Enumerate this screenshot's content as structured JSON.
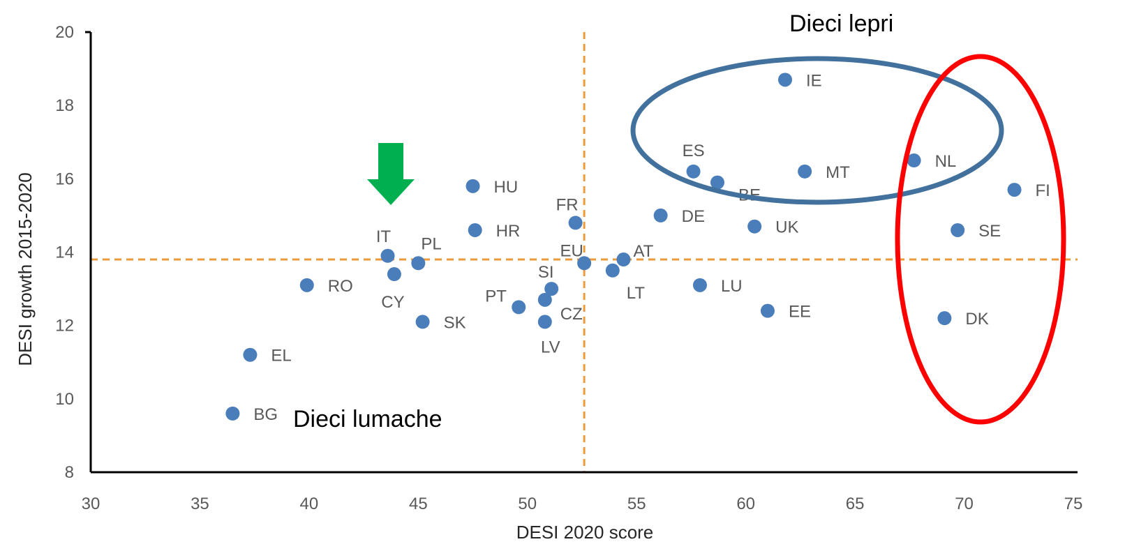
{
  "chart_data": {
    "type": "scatter",
    "xlabel": "DESI 2020 score",
    "ylabel": "DESI growth 2015-2020",
    "xlim": [
      30,
      75
    ],
    "ylim": [
      8,
      20
    ],
    "xticks": [
      30,
      35,
      40,
      45,
      50,
      55,
      60,
      65,
      70,
      75
    ],
    "yticks": [
      8,
      10,
      12,
      14,
      16,
      18,
      20
    ],
    "grid": false,
    "point_color": "#4a7ebb",
    "points": [
      {
        "label": "IE",
        "x": 61.8,
        "y": 18.7
      },
      {
        "label": "ES",
        "x": 57.6,
        "y": 16.2
      },
      {
        "label": "BE",
        "x": 58.7,
        "y": 15.9
      },
      {
        "label": "MT",
        "x": 62.7,
        "y": 16.2
      },
      {
        "label": "NL",
        "x": 67.7,
        "y": 16.5
      },
      {
        "label": "FI",
        "x": 72.3,
        "y": 15.7
      },
      {
        "label": "HU",
        "x": 47.5,
        "y": 15.8
      },
      {
        "label": "FR",
        "x": 52.2,
        "y": 14.8
      },
      {
        "label": "DE",
        "x": 56.1,
        "y": 15.0
      },
      {
        "label": "UK",
        "x": 60.4,
        "y": 14.7
      },
      {
        "label": "SE",
        "x": 69.7,
        "y": 14.6
      },
      {
        "label": "HR",
        "x": 47.6,
        "y": 14.6
      },
      {
        "label": "IT",
        "x": 43.6,
        "y": 13.9
      },
      {
        "label": "PL",
        "x": 45.0,
        "y": 13.7
      },
      {
        "label": "EU",
        "x": 52.6,
        "y": 13.7
      },
      {
        "label": "AT",
        "x": 54.4,
        "y": 13.8
      },
      {
        "label": "LT",
        "x": 53.9,
        "y": 13.5
      },
      {
        "label": "CY",
        "x": 43.9,
        "y": 13.4
      },
      {
        "label": "RO",
        "x": 39.9,
        "y": 13.1
      },
      {
        "label": "SI",
        "x": 51.1,
        "y": 13.0
      },
      {
        "label": "LU",
        "x": 57.9,
        "y": 13.1
      },
      {
        "label": "CZ",
        "x": 50.8,
        "y": 12.7
      },
      {
        "label": "PT",
        "x": 49.6,
        "y": 12.5
      },
      {
        "label": "SK",
        "x": 45.2,
        "y": 12.1
      },
      {
        "label": "LV",
        "x": 50.8,
        "y": 12.1
      },
      {
        "label": "EE",
        "x": 61.0,
        "y": 12.4
      },
      {
        "label": "DK",
        "x": 69.1,
        "y": 12.2
      },
      {
        "label": "EL",
        "x": 37.3,
        "y": 11.2
      },
      {
        "label": "BG",
        "x": 36.5,
        "y": 9.6
      }
    ],
    "reference_lines": {
      "vertical_x": 52.6,
      "horizontal_y": 13.8,
      "color": "#ed9a3b"
    },
    "annotations": [
      {
        "text": "Dieci lepri"
      },
      {
        "text": "Dieci lumache"
      }
    ],
    "highlight_colors": {
      "blue_ellipse": "#41719c",
      "red_ellipse": "#ff0000",
      "green_arrow": "#00b050"
    }
  }
}
